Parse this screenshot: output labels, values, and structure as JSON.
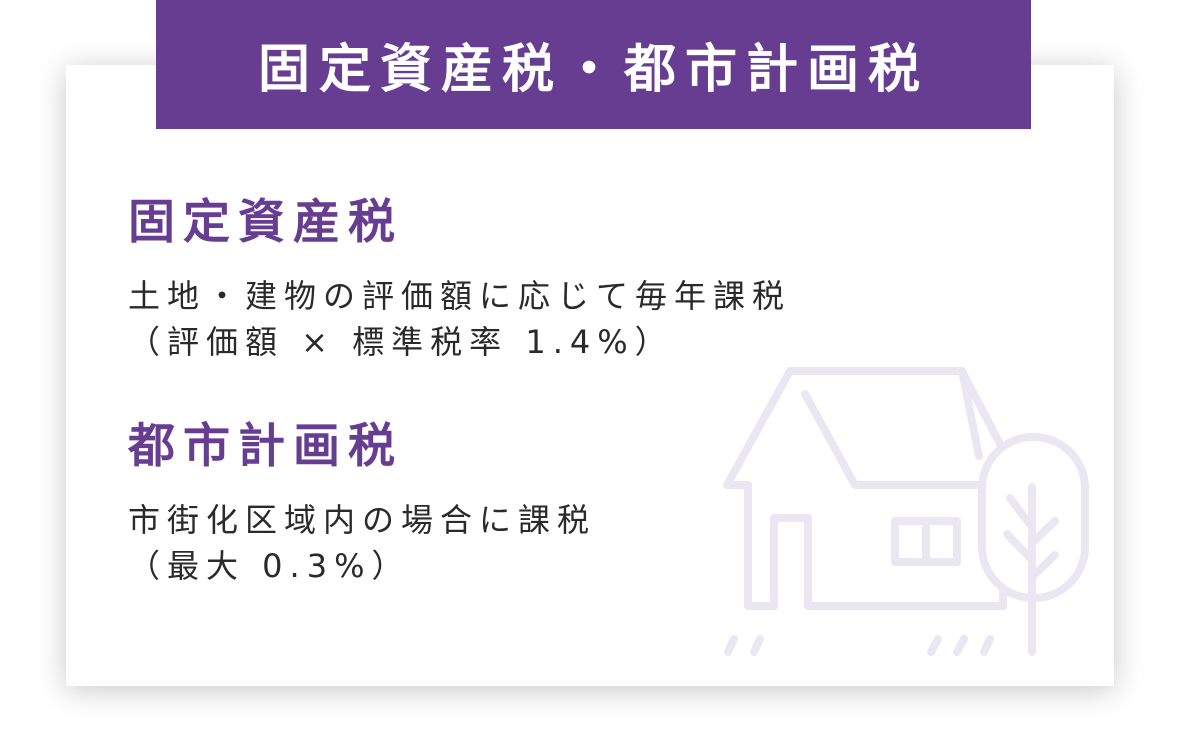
{
  "header": {
    "title": "固定資産税・都市計画税"
  },
  "sections": [
    {
      "title": "固定資産税",
      "lines": [
        "土地・建物の評価額に応じて毎年課税",
        "（評価額 × 標準税率 1.4%）"
      ]
    },
    {
      "title": "都市計画税",
      "lines": [
        "市街化区域内の場合に課税",
        "（最大 0.3%）"
      ]
    }
  ],
  "colors": {
    "accent": "#673d92",
    "illustration": "#ebe7f2"
  },
  "illustration": {
    "icon": "house-with-tree-icon"
  }
}
